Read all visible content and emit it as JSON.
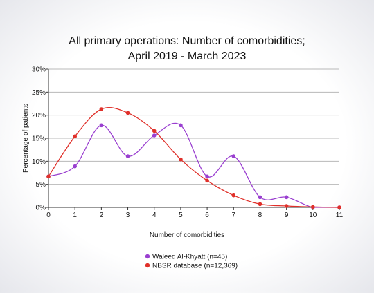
{
  "chart_data": {
    "type": "line",
    "title_line1": "All primary operations: Number of comorbidities;",
    "title_line2": "April 2019 - March 2023",
    "xlabel": "Number of comorbidities",
    "ylabel": "Percentage of patients",
    "x": [
      0,
      1,
      2,
      3,
      4,
      5,
      6,
      7,
      8,
      9,
      10,
      11
    ],
    "xlim": [
      0,
      11
    ],
    "ylim": [
      0,
      30
    ],
    "yticks": [
      0,
      5,
      10,
      15,
      20,
      25,
      30
    ],
    "ytick_labels": [
      "0%",
      "5%",
      "10%",
      "15%",
      "20%",
      "25%",
      "30%"
    ],
    "xtick_labels": [
      "0",
      "1",
      "2",
      "3",
      "4",
      "5",
      "6",
      "7",
      "8",
      "9",
      "10",
      "11"
    ],
    "grid": "horizontal",
    "legend_position": "bottom",
    "series": [
      {
        "name": "Waleed Al-Khyatt (n=45)",
        "color": "#9a3fd0",
        "values": [
          6.7,
          8.9,
          17.8,
          11.1,
          15.6,
          17.8,
          6.7,
          11.1,
          2.2,
          2.2,
          0,
          0
        ]
      },
      {
        "name": "NBSR database (n=12,369)",
        "color": "#e0302a",
        "values": [
          6.7,
          15.4,
          21.3,
          20.5,
          16.6,
          10.4,
          5.8,
          2.6,
          0.7,
          0.3,
          0.1,
          0.0
        ]
      }
    ]
  }
}
